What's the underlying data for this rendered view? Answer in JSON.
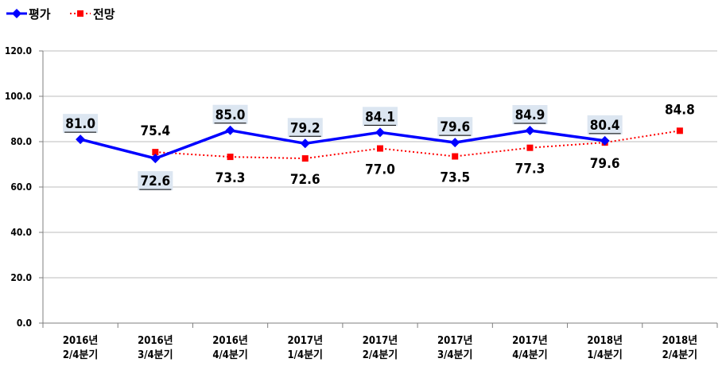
{
  "chart_data": {
    "type": "line",
    "title": "",
    "xlabel": "",
    "ylabel": "",
    "ylim": [
      0,
      120
    ],
    "yticks": [
      "0.0",
      "20.0",
      "40.0",
      "60.0",
      "80.0",
      "100.0",
      "120.0"
    ],
    "grid": true,
    "legend_position": "top-left",
    "categories": [
      [
        "2016년",
        "2/4분기"
      ],
      [
        "2016년",
        "3/4분기"
      ],
      [
        "2016년",
        "4/4분기"
      ],
      [
        "2017년",
        "1/4분기"
      ],
      [
        "2017년",
        "2/4분기"
      ],
      [
        "2017년",
        "3/4분기"
      ],
      [
        "2017년",
        "4/4분기"
      ],
      [
        "2018년",
        "1/4분기"
      ],
      [
        "2018년",
        "2/4분기"
      ]
    ],
    "series": [
      {
        "name": "평가",
        "color": "#0000ff",
        "values": [
          81.0,
          72.6,
          85.0,
          79.2,
          84.1,
          79.6,
          84.9,
          80.4,
          null
        ],
        "labels": [
          "81.0",
          "72.6",
          "85.0",
          "79.2",
          "84.1",
          "79.6",
          "84.9",
          "80.4",
          null
        ],
        "label_position": [
          "above",
          "below",
          "above",
          "above",
          "above",
          "above",
          "above",
          "above",
          null
        ]
      },
      {
        "name": "전망",
        "color": "#ff0000",
        "values": [
          null,
          75.4,
          73.3,
          72.6,
          77.0,
          73.5,
          77.3,
          79.6,
          84.8
        ],
        "labels": [
          null,
          "75.4",
          "73.3",
          "72.6",
          "77.0",
          "73.5",
          "77.3",
          "79.6",
          "84.8"
        ],
        "label_position": [
          null,
          "above",
          "below",
          "below",
          "below",
          "below",
          "below",
          "below",
          "above"
        ]
      }
    ]
  }
}
